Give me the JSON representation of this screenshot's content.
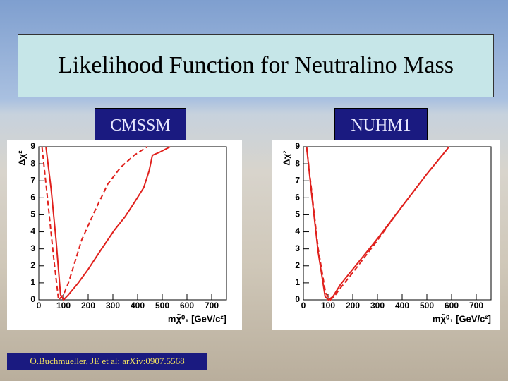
{
  "slide": {
    "title": "Likelihood Function for Neutralino Mass",
    "citation": "O.Buchmueller, JE et al: arXiv:0907.5568"
  },
  "chart_data": [
    {
      "type": "line",
      "title": "CMSSM",
      "x_label": "mχ̃⁰₁ [GeV/c²]",
      "y_label": "Δχ²",
      "xlim": [
        0,
        760
      ],
      "ylim": [
        0,
        9
      ],
      "xticks": [
        0,
        100,
        200,
        300,
        400,
        500,
        600,
        700
      ],
      "yticks": [
        0,
        1,
        2,
        3,
        4,
        5,
        6,
        7,
        8,
        9
      ],
      "series": [
        {
          "color": "#e0201c",
          "dash": false,
          "x": [
            29,
            50,
            70,
            88,
            100,
            120,
            160,
            200,
            250,
            306,
            350,
            386,
            425,
            447,
            460,
            492,
            505,
            532
          ],
          "values": [
            9,
            6.5,
            3.5,
            0.3,
            0,
            0.3,
            1,
            1.8,
            2.9,
            4.1,
            4.9,
            5.7,
            6.6,
            7.6,
            8.5,
            8.7,
            8.8,
            9
          ]
        },
        {
          "color": "#e0201c",
          "dash": true,
          "x": [
            13,
            35,
            60,
            80,
            100,
            120,
            150,
            173,
            226,
            279,
            332,
            386,
            439
          ],
          "values": [
            9,
            6,
            2.5,
            0,
            0.3,
            1,
            2.4,
            3.5,
            5.2,
            6.8,
            7.8,
            8.5,
            9
          ]
        }
      ]
    },
    {
      "type": "line",
      "title": "NUHM1",
      "x_label": "mχ̃⁰₁ [GeV/c²]",
      "y_label": "Δχ²",
      "xlim": [
        0,
        760
      ],
      "ylim": [
        0,
        9
      ],
      "xticks": [
        0,
        100,
        200,
        300,
        400,
        500,
        600,
        700
      ],
      "yticks": [
        0,
        1,
        2,
        3,
        4,
        5,
        6,
        7,
        8,
        9
      ],
      "series": [
        {
          "color": "#e0201c",
          "dash": false,
          "x": [
            13,
            35,
            60,
            88,
            101,
            120,
            150,
            200,
            300,
            400,
            500,
            590
          ],
          "values": [
            9,
            6,
            2.8,
            0.2,
            0,
            0.2,
            0.9,
            1.8,
            3.6,
            5.5,
            7.4,
            9
          ]
        },
        {
          "color": "#e0201c",
          "dash": true,
          "x": [
            13,
            35,
            60,
            90,
            110,
            130,
            150,
            200,
            300,
            400,
            500,
            590
          ],
          "values": [
            9,
            6.2,
            3,
            0.4,
            0,
            0.3,
            0.7,
            1.6,
            3.5,
            5.5,
            7.4,
            9
          ]
        }
      ]
    }
  ]
}
